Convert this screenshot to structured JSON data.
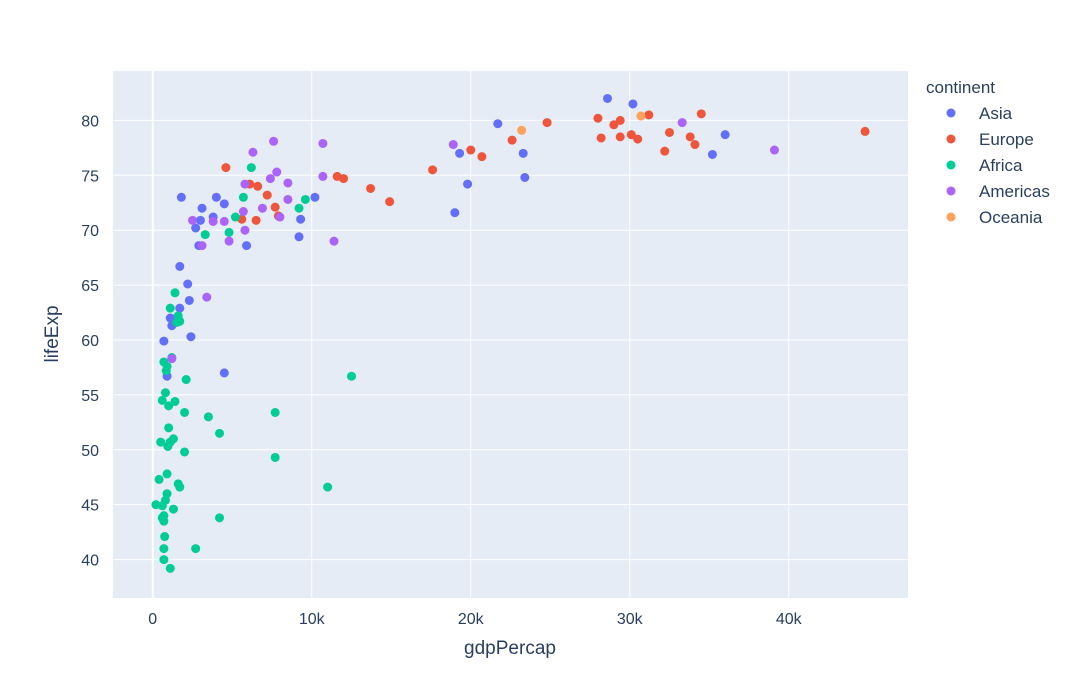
{
  "chart_data": {
    "type": "scatter",
    "title": "",
    "xlabel": "gdpPercap",
    "ylabel": "lifeExp",
    "xlim": [
      -2500,
      47500
    ],
    "ylim": [
      36.5,
      84.5
    ],
    "x_ticks": [
      0,
      10000,
      20000,
      30000,
      40000
    ],
    "x_tick_labels": [
      "0",
      "10k",
      "20k",
      "30k",
      "40k"
    ],
    "y_ticks": [
      40,
      45,
      50,
      55,
      60,
      65,
      70,
      75,
      80
    ],
    "y_tick_labels": [
      "40",
      "45",
      "50",
      "55",
      "60",
      "65",
      "70",
      "75",
      "80"
    ],
    "grid": true,
    "legend_title": "continent",
    "legend_placement": "right",
    "plot_background": "#e5ecf6",
    "series": [
      {
        "name": "Asia",
        "color": "#636efa",
        "points": [
          [
            28600,
            82.0
          ],
          [
            30200,
            81.5
          ],
          [
            21700,
            79.7
          ],
          [
            36000,
            78.7
          ],
          [
            35200,
            76.9
          ],
          [
            23300,
            77.0
          ],
          [
            23400,
            74.8
          ],
          [
            19300,
            77.0
          ],
          [
            19800,
            74.2
          ],
          [
            19000,
            71.6
          ],
          [
            10200,
            73.0
          ],
          [
            9300,
            71.0
          ],
          [
            9200,
            69.4
          ],
          [
            5900,
            68.6
          ],
          [
            4500,
            72.4
          ],
          [
            4000,
            73.0
          ],
          [
            3800,
            71.2
          ],
          [
            3100,
            72.0
          ],
          [
            3000,
            70.9
          ],
          [
            2700,
            70.2
          ],
          [
            2900,
            68.6
          ],
          [
            1800,
            73.0
          ],
          [
            2200,
            65.1
          ],
          [
            2300,
            63.6
          ],
          [
            2400,
            60.3
          ],
          [
            1700,
            66.7
          ],
          [
            1700,
            62.9
          ],
          [
            1300,
            61.9
          ],
          [
            1200,
            61.3
          ],
          [
            700,
            59.9
          ],
          [
            4500,
            57.0
          ],
          [
            900,
            56.7
          ],
          [
            1100,
            62.0
          ]
        ]
      },
      {
        "name": "Europe",
        "color": "#ef553b",
        "points": [
          [
            44800,
            79.0
          ],
          [
            34500,
            80.6
          ],
          [
            33800,
            78.5
          ],
          [
            34100,
            77.8
          ],
          [
            31200,
            80.5
          ],
          [
            30500,
            78.3
          ],
          [
            30100,
            78.7
          ],
          [
            29400,
            80.0
          ],
          [
            29000,
            79.6
          ],
          [
            28200,
            78.4
          ],
          [
            28000,
            80.2
          ],
          [
            29400,
            78.5
          ],
          [
            32500,
            78.9
          ],
          [
            32200,
            77.2
          ],
          [
            24800,
            79.8
          ],
          [
            22600,
            78.2
          ],
          [
            20000,
            77.3
          ],
          [
            20700,
            76.7
          ],
          [
            17600,
            75.5
          ],
          [
            14900,
            72.6
          ],
          [
            13700,
            73.8
          ],
          [
            12000,
            74.7
          ],
          [
            11600,
            74.9
          ],
          [
            7700,
            72.1
          ],
          [
            7900,
            71.3
          ],
          [
            7200,
            73.2
          ],
          [
            6600,
            74.0
          ],
          [
            6100,
            74.2
          ],
          [
            6500,
            70.9
          ],
          [
            5600,
            71.0
          ],
          [
            4600,
            75.7
          ]
        ]
      },
      {
        "name": "Africa",
        "color": "#00cc96",
        "points": [
          [
            12500,
            56.7
          ],
          [
            11000,
            46.6
          ],
          [
            9600,
            72.8
          ],
          [
            9200,
            72.0
          ],
          [
            7700,
            53.4
          ],
          [
            7700,
            49.3
          ],
          [
            6200,
            75.7
          ],
          [
            5700,
            73.0
          ],
          [
            5200,
            71.2
          ],
          [
            4800,
            69.8
          ],
          [
            4200,
            51.5
          ],
          [
            4200,
            43.8
          ],
          [
            3500,
            53.0
          ],
          [
            3300,
            69.6
          ],
          [
            2700,
            41.0
          ],
          [
            2000,
            49.8
          ],
          [
            2000,
            53.4
          ],
          [
            2100,
            56.4
          ],
          [
            1700,
            61.7
          ],
          [
            1600,
            62.2
          ],
          [
            1500,
            61.6
          ],
          [
            1400,
            64.3
          ],
          [
            1400,
            54.4
          ],
          [
            1300,
            51.0
          ],
          [
            1300,
            44.6
          ],
          [
            1200,
            58.4
          ],
          [
            1100,
            62.9
          ],
          [
            1100,
            50.7
          ],
          [
            1100,
            39.2
          ],
          [
            1000,
            54.0
          ],
          [
            1000,
            52.0
          ],
          [
            950,
            50.3
          ],
          [
            900,
            57.6
          ],
          [
            850,
            57.2
          ],
          [
            800,
            55.2
          ],
          [
            700,
            58.0
          ],
          [
            600,
            54.5
          ],
          [
            500,
            50.7
          ],
          [
            400,
            47.3
          ],
          [
            200,
            45.0
          ],
          [
            900,
            47.8
          ],
          [
            900,
            46.0
          ],
          [
            800,
            45.4
          ],
          [
            700,
            44.0
          ],
          [
            600,
            44.9
          ],
          [
            700,
            43.5
          ],
          [
            750,
            42.1
          ],
          [
            700,
            41.0
          ],
          [
            700,
            40.0
          ],
          [
            1600,
            46.9
          ],
          [
            1700,
            46.6
          ],
          [
            600,
            43.8
          ]
        ]
      },
      {
        "name": "Americas",
        "color": "#ab63fa",
        "points": [
          [
            39100,
            77.3
          ],
          [
            33300,
            79.8
          ],
          [
            18900,
            77.8
          ],
          [
            10700,
            77.9
          ],
          [
            10700,
            74.9
          ],
          [
            11400,
            69.0
          ],
          [
            8500,
            74.3
          ],
          [
            8500,
            72.8
          ],
          [
            8000,
            71.2
          ],
          [
            7800,
            75.3
          ],
          [
            7600,
            78.1
          ],
          [
            7400,
            74.7
          ],
          [
            6900,
            72.0
          ],
          [
            6300,
            77.1
          ],
          [
            5800,
            74.2
          ],
          [
            5700,
            71.7
          ],
          [
            5800,
            70.0
          ],
          [
            4800,
            69.0
          ],
          [
            4500,
            70.8
          ],
          [
            3800,
            70.8
          ],
          [
            3400,
            63.9
          ],
          [
            2500,
            70.9
          ],
          [
            3100,
            68.6
          ],
          [
            1200,
            58.3
          ]
        ]
      },
      {
        "name": "Oceania",
        "color": "#ffa15a",
        "points": [
          [
            23200,
            79.1
          ],
          [
            30700,
            80.4
          ]
        ]
      }
    ]
  }
}
